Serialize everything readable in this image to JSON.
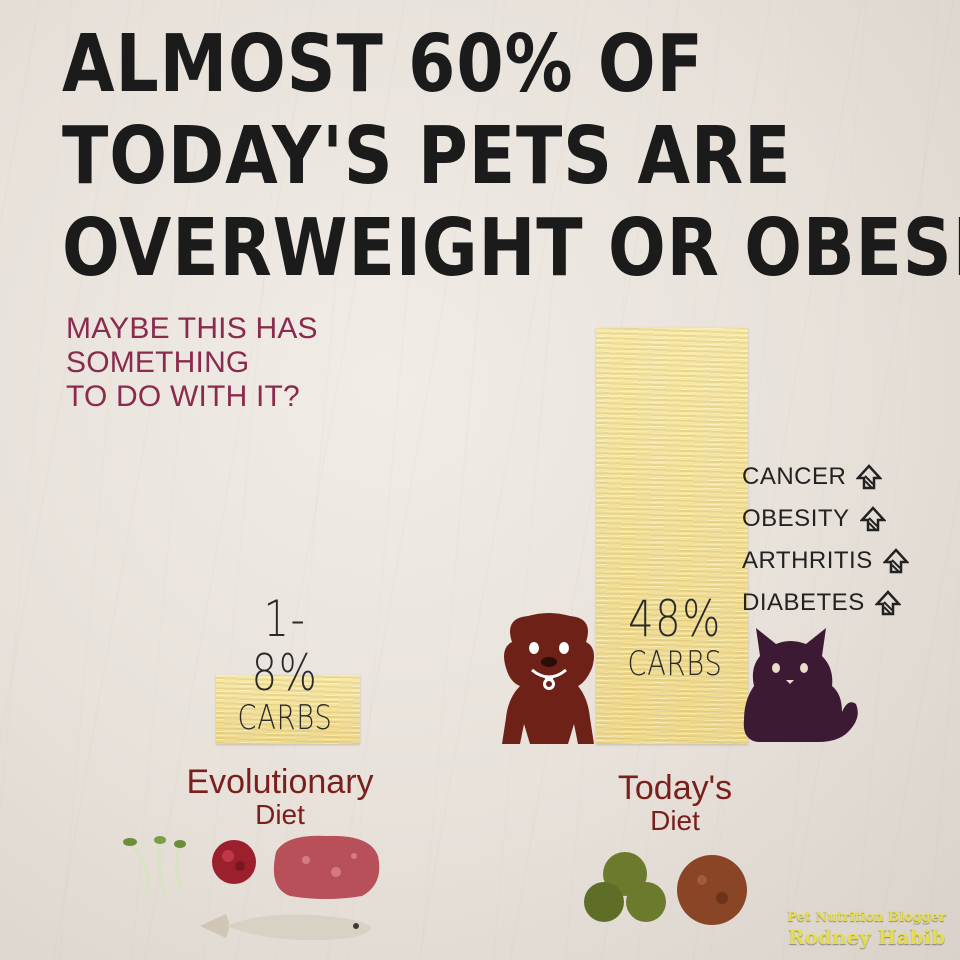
{
  "headline": {
    "line1": "ALMOST 60% OF",
    "line2": "TODAY'S PETS ARE",
    "line3": "OVERWEIGHT OR OBESE"
  },
  "subhead": {
    "line1": "MAYBE THIS HAS",
    "line2": "SOMETHING",
    "line3": "TO DO WITH IT?"
  },
  "chart_data": {
    "type": "bar",
    "categories": [
      "Evolutionary Diet",
      "Today's Diet"
    ],
    "values": [
      8,
      48
    ],
    "data_labels": [
      {
        "pct": "1-8%",
        "unit": "CARBS"
      },
      {
        "pct": "48%",
        "unit": "CARBS"
      }
    ],
    "category_labels": [
      {
        "main": "Evolutionary",
        "sub": "Diet"
      },
      {
        "main": "Today's",
        "sub": "Diet"
      }
    ],
    "ylim": [
      0,
      48
    ],
    "grid": false
  },
  "effects": [
    "CANCER",
    "OBESITY",
    "ARTHRITIS",
    "DIABETES"
  ],
  "credit": {
    "role": "Pet Nutrition Blogger",
    "name": "Rodney Habib"
  },
  "colors": {
    "headline": "#1b1b1b",
    "subhead": "#8a2a4e",
    "diet_title": "#7a1f1c",
    "dog": "#6e2217",
    "cat": "#3c1a33",
    "bar": "#f3e29b",
    "credit": "#e4dc52"
  },
  "icons": {
    "dog": "dog-icon",
    "cat": "cat-icon",
    "arrow": "up-arrow-icon"
  }
}
